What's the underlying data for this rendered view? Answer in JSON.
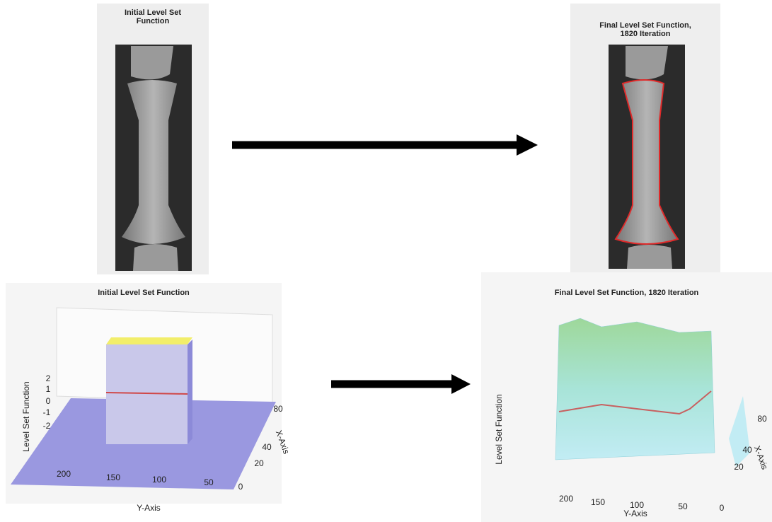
{
  "panels": [
    {
      "title": "Initial Level Set Function"
    },
    {
      "title": "Final Level Set Function, 1820 Iteration"
    }
  ],
  "plots": [
    {
      "title": "Initial Level Set Function",
      "z_label": "Level Set Function",
      "y_label": "Y-Axis",
      "x_label": "X-Axis",
      "z_ticks": [
        2,
        1,
        0,
        -1,
        -2
      ],
      "y_ticks": [
        200,
        150,
        100,
        50
      ],
      "x_ticks": [
        80,
        40,
        20,
        0
      ]
    },
    {
      "title": "Final Level Set Function, 1820 Iteration",
      "z_label": "Level Set Function",
      "y_label": "Y-Axis",
      "x_label": "X-Axis",
      "y_ticks": [
        200,
        150,
        100,
        50,
        0
      ],
      "x_ticks": [
        80,
        40,
        20
      ]
    }
  ]
}
